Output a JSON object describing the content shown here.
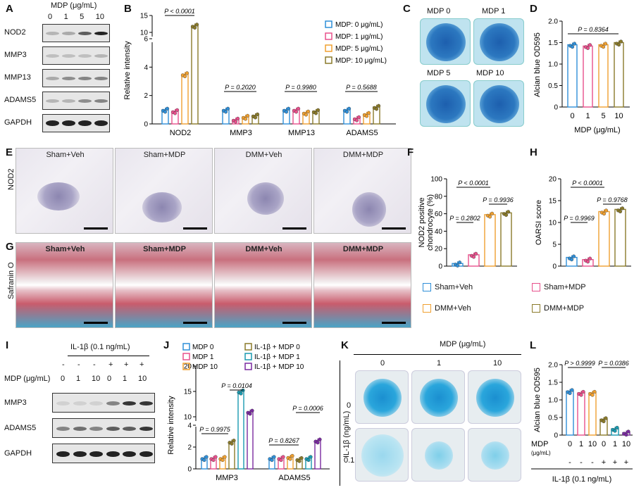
{
  "panels": {
    "A": {
      "label": "A",
      "header": "MDP (μg/mL)",
      "lanes": [
        "0",
        "1",
        "5",
        "10"
      ],
      "rows": [
        "NOD2",
        "MMP3",
        "MMP13",
        "ADAMS5",
        "GAPDH"
      ]
    },
    "B": {
      "label": "B",
      "chart_data": {
        "type": "bar",
        "ylabel": "Relative intensity",
        "categories": [
          "NOD2",
          "MMP3",
          "MMP13",
          "ADAMS5"
        ],
        "series": [
          {
            "name": "MDP: 0 μg/mL)",
            "color": "#2f8fd8",
            "values": [
              1.0,
              1.0,
              1.0,
              1.0
            ]
          },
          {
            "name": "MDP: 1 μg/mL)",
            "color": "#e8508c",
            "values": [
              0.9,
              0.3,
              1.0,
              0.4
            ]
          },
          {
            "name": "MDP: 5 μg/mL)",
            "color": "#f0a030",
            "values": [
              3.5,
              0.5,
              0.8,
              0.7
            ]
          },
          {
            "name": "MDP: 10 μg/mL)",
            "color": "#8a7a2a",
            "values": [
              12.0,
              0.6,
              0.9,
              1.2
            ]
          }
        ],
        "yticks": [
          "0",
          "2",
          "4",
          "6",
          "10",
          "15"
        ],
        "pvalues": [
          "P < 0.0001",
          "P = 0.2020",
          "P = 0.9980",
          "P = 0.5688"
        ]
      }
    },
    "C": {
      "label": "C",
      "dishes": [
        "MDP 0",
        "MDP 1",
        "MDP 5",
        "MDP 10"
      ]
    },
    "D": {
      "label": "D",
      "chart_data": {
        "type": "bar",
        "ylabel": "Alcian blue OD595",
        "xlabel": "MDP (μg/mL)",
        "categories": [
          "0",
          "1",
          "5",
          "10"
        ],
        "values": [
          1.45,
          1.42,
          1.45,
          1.5
        ],
        "colors": [
          "#2f8fd8",
          "#e8508c",
          "#f0a030",
          "#8a7a2a"
        ],
        "ylim": [
          0,
          2.0
        ],
        "yticks": [
          "0",
          "0.5",
          "1.0",
          "1.5",
          "2.0"
        ],
        "pvalue": "P = 0.8364"
      }
    },
    "E": {
      "label": "E",
      "titles": [
        "Sham+Veh",
        "Sham+MDP",
        "DMM+Veh",
        "DMM+MDP"
      ],
      "rowlabel": "NOD2"
    },
    "F": {
      "label": "F",
      "chart_data": {
        "type": "bar",
        "ylabel": "NOD2 positive chondrocyte (%)",
        "categories": [
          "Sham+Veh",
          "Sham+MDP",
          "DMM+Veh",
          "DMM+MDP"
        ],
        "values": [
          3,
          13,
          59,
          61
        ],
        "colors": [
          "#2f8fd8",
          "#e8508c",
          "#f0a030",
          "#8a7a2a"
        ],
        "ylim": [
          0,
          100
        ],
        "yticks": [
          "0",
          "20",
          "40",
          "60",
          "80",
          "100"
        ],
        "pvalues": [
          "P < 0.0001",
          "P = 0.9936",
          "P = 0.2802"
        ]
      }
    },
    "H": {
      "label": "H",
      "chart_data": {
        "type": "bar",
        "ylabel": "OARSI score",
        "categories": [
          "Sham+Veh",
          "Sham+MDP",
          "DMM+Veh",
          "DMM+MDP"
        ],
        "values": [
          2,
          1.5,
          12.5,
          13
        ],
        "colors": [
          "#2f8fd8",
          "#e8508c",
          "#f0a030",
          "#8a7a2a"
        ],
        "ylim": [
          0,
          20
        ],
        "yticks": [
          "0",
          "5",
          "10",
          "15",
          "20"
        ],
        "pvalues": [
          "P < 0.0001",
          "P = 0.9768",
          "P = 0.9969"
        ]
      }
    },
    "FH_legend": [
      "Sham+Veh",
      "Sham+MDP",
      "DMM+Veh",
      "DMM+MDP"
    ],
    "G": {
      "label": "G",
      "titles": [
        "Sham+Veh",
        "Sham+MDP",
        "DMM+Veh",
        "DMM+MDP"
      ],
      "rowlabel": "Safranin O"
    },
    "I": {
      "label": "I",
      "header": "IL-1β (0.1 ng/mL)",
      "il_signs": [
        "-",
        "-",
        "-",
        "+",
        "+",
        "+"
      ],
      "mdp_label": "MDP (μg/mL)",
      "mdp_vals": [
        "0",
        "1",
        "10",
        "0",
        "1",
        "10"
      ],
      "rows": [
        "MMP3",
        "ADAMS5",
        "GAPDH"
      ]
    },
    "J": {
      "label": "J",
      "chart_data": {
        "type": "bar",
        "ylabel": "Relative intensity",
        "categories": [
          "MMP3",
          "ADAMS5"
        ],
        "series": [
          {
            "name": "MDP 0",
            "color": "#2f8fd8",
            "values": [
              1.0,
              1.0
            ]
          },
          {
            "name": "MDP 1",
            "color": "#e8508c",
            "values": [
              1.0,
              1.0
            ]
          },
          {
            "name": "MDP 10",
            "color": "#f0a030",
            "values": [
              1.0,
              1.1
            ]
          },
          {
            "name": "IL-1β + MDP 0",
            "color": "#8a7a2a",
            "values": [
              2.5,
              0.9
            ]
          },
          {
            "name": "IL-1β + MDP 1",
            "color": "#1a9ab0",
            "values": [
              15.0,
              1.0
            ]
          },
          {
            "name": "IL-1β + MDP 10",
            "color": "#7a2aa0",
            "values": [
              11.0,
              2.6
            ]
          }
        ],
        "yticks": [
          "0",
          "2",
          "4",
          "10",
          "15",
          "20"
        ],
        "pvalues": [
          "P = 0.0104",
          "P = 0.9975",
          "P = 0.8267",
          "P = 0.0006"
        ]
      }
    },
    "K": {
      "label": "K",
      "header": "MDP (μg/mL)",
      "cols": [
        "0",
        "1",
        "10"
      ],
      "rowlabel": "IL-1β (ng/mL)",
      "rows": [
        "0",
        "0.1"
      ]
    },
    "L": {
      "label": "L",
      "chart_data": {
        "type": "bar",
        "ylabel": "Alcian blue OD595",
        "categories": [
          "0",
          "1",
          "10",
          "0",
          "1",
          "10"
        ],
        "values": [
          1.25,
          1.2,
          1.2,
          0.45,
          0.18,
          0.07
        ],
        "colors": [
          "#2f8fd8",
          "#e8508c",
          "#f0a030",
          "#8a7a2a",
          "#1a9ab0",
          "#7a2aa0"
        ],
        "ylim": [
          0,
          2.0
        ],
        "yticks": [
          "0",
          "0.5",
          "1.0",
          "1.5",
          "2.0"
        ],
        "pvalues": [
          "P > 0.9999",
          "P = 0.0386"
        ],
        "mdp_label": "MDP",
        "unit_label": "(μg/mL)",
        "il_signs": [
          "-",
          "-",
          "-",
          "+",
          "+",
          "+"
        ],
        "il_label": "IL-1β (0.1 ng/mL)"
      }
    }
  }
}
